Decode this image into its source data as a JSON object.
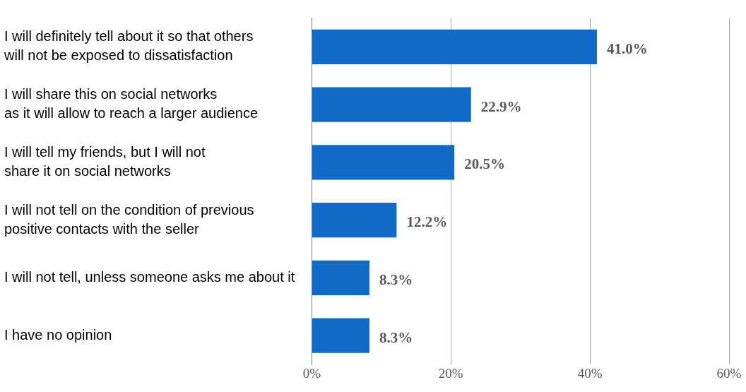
{
  "chart_data": {
    "type": "bar",
    "orientation": "horizontal",
    "categories": [
      "I will definitely tell about it so that others\nwill not be exposed to dissatisfaction",
      "I will share this on social networks\nas it will allow to reach a larger audience",
      "I will tell my friends, but I will not\nshare it on social networks",
      "I will not tell on the condition of previous\npositive contacts with the seller",
      "I will not tell, unless someone asks me about it",
      "I have no opinion"
    ],
    "values": [
      41.0,
      22.9,
      20.5,
      12.2,
      8.3,
      8.3
    ],
    "value_labels": [
      "41.0%",
      "22.9%",
      "20.5%",
      "12.2%",
      "8.3%",
      "8.3%"
    ],
    "color": "#0f6bc6",
    "xlim": [
      0,
      60
    ],
    "xticks": [
      {
        "value": 0,
        "label": "0%"
      },
      {
        "value": 20,
        "label": "20%"
      },
      {
        "value": 40,
        "label": "40%"
      },
      {
        "value": 60,
        "label": "60%"
      }
    ],
    "grid": "x",
    "legend": false
  }
}
